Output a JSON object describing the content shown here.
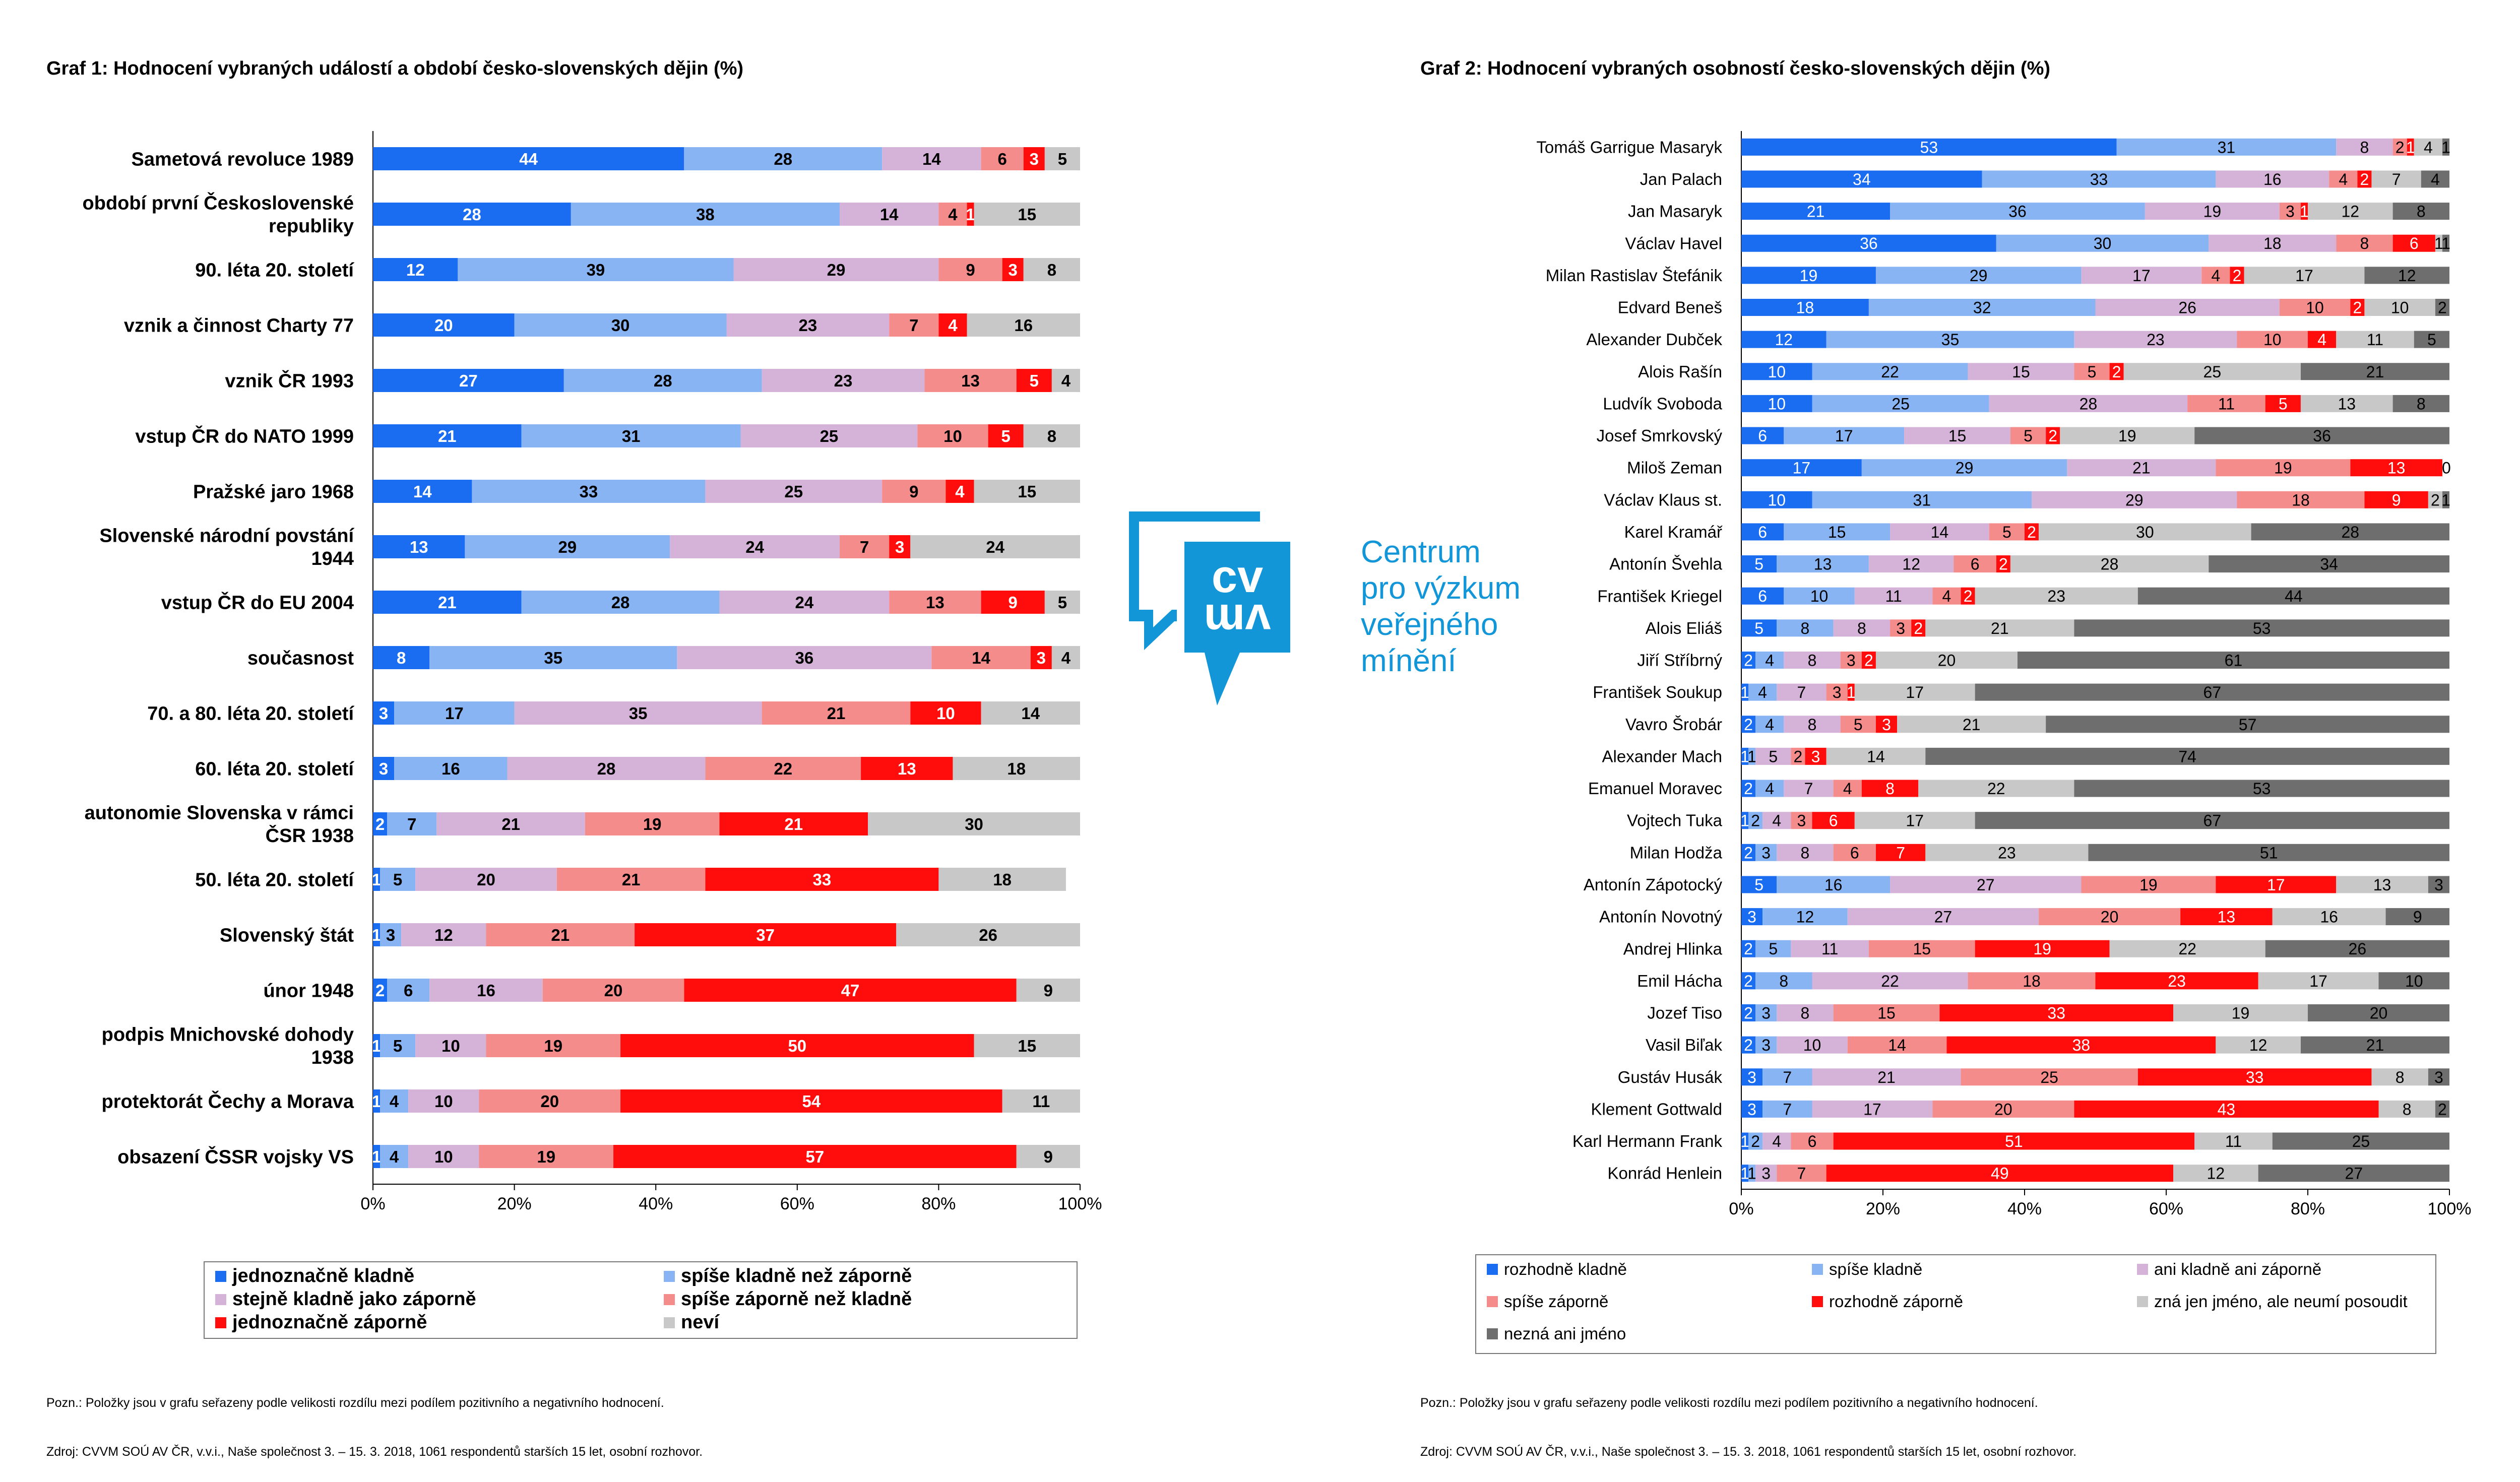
{
  "chart_data": [
    {
      "type": "bar",
      "stacked": true,
      "orientation": "horizontal",
      "title": "Graf 1: Hodnocení vybraných událostí a období česko-slovenských dějin (%)",
      "xlim": [
        0,
        100
      ],
      "xticks": [
        "0%",
        "20%",
        "40%",
        "60%",
        "80%",
        "100%"
      ],
      "grid": false,
      "legend_position": "bottom",
      "categories": [
        "Sametová revoluce 1989",
        "období první Československé republiky",
        "90. léta 20. století",
        "vznik a činnost Charty 77",
        "vznik ČR 1993",
        "vstup ČR do NATO 1999",
        "Pražské jaro 1968",
        "Slovenské národní povstání 1944",
        "vstup ČR do EU 2004",
        "současnost",
        "70. a 80. léta 20. století",
        "60. léta 20. století",
        "autonomie Slovenska v rámci ČSR 1938",
        "50. léta 20. století",
        "Slovenský štát",
        "únor 1948",
        "podpis Mnichovské dohody 1938",
        "protektorát Čechy a Morava",
        "obsazení ČSSR vojsky VS"
      ],
      "series": [
        {
          "name": "jednoznačně kladně",
          "color": "#1a6cf0",
          "values": [
            44,
            28,
            12,
            20,
            27,
            21,
            14,
            13,
            21,
            8,
            3,
            3,
            2,
            1,
            1,
            2,
            1,
            1,
            1
          ]
        },
        {
          "name": "spíše kladně než záporně",
          "color": "#89b4f4",
          "values": [
            28,
            38,
            39,
            30,
            28,
            31,
            33,
            29,
            28,
            35,
            17,
            16,
            7,
            5,
            3,
            6,
            5,
            4,
            4
          ]
        },
        {
          "name": "stejně kladně jako záporně",
          "color": "#d5b2d8",
          "values": [
            14,
            14,
            29,
            23,
            23,
            25,
            25,
            24,
            24,
            36,
            35,
            28,
            21,
            20,
            12,
            16,
            10,
            10,
            10
          ]
        },
        {
          "name": "spíše záporně než kladně",
          "color": "#f58c8c",
          "values": [
            6,
            4,
            9,
            7,
            13,
            10,
            9,
            7,
            13,
            14,
            21,
            22,
            19,
            21,
            21,
            20,
            19,
            20,
            19
          ]
        },
        {
          "name": "jednoznačně záporně",
          "color": "#ff0d0d",
          "values": [
            3,
            1,
            3,
            4,
            5,
            5,
            4,
            3,
            9,
            3,
            10,
            13,
            21,
            33,
            37,
            47,
            50,
            54,
            57
          ]
        },
        {
          "name": "neví",
          "color": "#c8c8c8",
          "values": [
            5,
            15,
            8,
            16,
            4,
            8,
            15,
            24,
            5,
            4,
            14,
            18,
            30,
            18,
            26,
            9,
            15,
            11,
            9
          ]
        }
      ]
    },
    {
      "type": "bar",
      "stacked": true,
      "orientation": "horizontal",
      "title": "Graf 2: Hodnocení vybraných osobností česko-slovenských dějin (%)",
      "xlim": [
        0,
        100
      ],
      "xticks": [
        "0%",
        "20%",
        "40%",
        "60%",
        "80%",
        "100%"
      ],
      "grid": false,
      "legend_position": "bottom",
      "categories": [
        "Tomáš Garrigue Masaryk",
        "Jan Palach",
        "Jan Masaryk",
        "Václav Havel",
        "Milan Rastislav Štefánik",
        "Edvard Beneš",
        "Alexander Dubček",
        "Alois Rašín",
        "Ludvík Svoboda",
        "Josef Smrkovský",
        "Miloš Zeman",
        "Václav Klaus st.",
        "Karel Kramář",
        "Antonín Švehla",
        "František Kriegel",
        "Alois Eliáš",
        "Jiří Stříbrný",
        "František Soukup",
        "Vavro Šrobár",
        "Alexander Mach",
        "Emanuel Moravec",
        "Vojtech Tuka",
        "Milan Hodža",
        "Antonín Zápotocký",
        "Antonín Novotný",
        "Andrej Hlinka",
        "Emil Hácha",
        "Jozef Tiso",
        "Vasil Biľak",
        "Gustáv Husák",
        "Klement Gottwald",
        "Karl Hermann Frank",
        "Konrád Henlein"
      ],
      "series": [
        {
          "name": "rozhodně kladně",
          "color": "#1a6cf0",
          "values": [
            53,
            34,
            21,
            36,
            19,
            18,
            12,
            10,
            10,
            6,
            17,
            10,
            6,
            5,
            6,
            5,
            2,
            1,
            2,
            1,
            2,
            1,
            2,
            5,
            3,
            2,
            2,
            2,
            2,
            3,
            3,
            1,
            1
          ]
        },
        {
          "name": "spíše kladně",
          "color": "#89b4f4",
          "values": [
            31,
            33,
            36,
            30,
            29,
            32,
            35,
            22,
            25,
            17,
            29,
            31,
            15,
            13,
            10,
            8,
            4,
            4,
            4,
            1,
            4,
            2,
            3,
            16,
            12,
            5,
            8,
            3,
            3,
            7,
            7,
            2,
            1
          ]
        },
        {
          "name": "ani kladně ani záporně",
          "color": "#d5b2d8",
          "values": [
            8,
            16,
            19,
            18,
            17,
            26,
            23,
            15,
            28,
            15,
            21,
            29,
            14,
            12,
            11,
            8,
            8,
            7,
            8,
            5,
            7,
            4,
            8,
            27,
            27,
            11,
            22,
            8,
            10,
            21,
            17,
            4,
            3
          ]
        },
        {
          "name": "spíše záporně",
          "color": "#f58c8c",
          "values": [
            2,
            4,
            3,
            8,
            4,
            10,
            10,
            5,
            11,
            5,
            19,
            18,
            5,
            6,
            4,
            3,
            3,
            3,
            5,
            2,
            4,
            3,
            6,
            19,
            20,
            15,
            18,
            15,
            14,
            25,
            20,
            6,
            7
          ]
        },
        {
          "name": "rozhodně záporně",
          "color": "#ff0d0d",
          "values": [
            1,
            2,
            1,
            6,
            2,
            2,
            4,
            2,
            5,
            2,
            13,
            9,
            2,
            2,
            2,
            2,
            2,
            1,
            3,
            3,
            8,
            6,
            7,
            17,
            13,
            19,
            23,
            33,
            38,
            33,
            43,
            51,
            49
          ]
        },
        {
          "name": "zná jen jméno, ale neumí posoudit",
          "color": "#c8c8c8",
          "values": [
            4,
            7,
            12,
            1,
            17,
            10,
            11,
            25,
            13,
            19,
            0,
            2,
            30,
            28,
            23,
            21,
            20,
            17,
            21,
            14,
            22,
            17,
            23,
            13,
            16,
            22,
            17,
            19,
            12,
            8,
            8,
            11,
            12
          ]
        },
        {
          "name": "nezná ani jméno",
          "color": "#6e6e6e",
          "values": [
            1,
            4,
            8,
            1,
            12,
            2,
            5,
            21,
            8,
            36,
            0,
            1,
            28,
            34,
            44,
            53,
            61,
            67,
            57,
            74,
            53,
            67,
            51,
            3,
            9,
            26,
            10,
            20,
            21,
            3,
            2,
            25,
            27
          ]
        }
      ]
    }
  ],
  "notes": {
    "poznamka": "Pozn.: Položky jsou v grafu seřazeny podle velikosti rozdílu mezi podílem pozitivního a negativního hodnocení.",
    "zdroj": "Zdroj: CVVM SOÚ AV ČR, v.v.i., Naše společnost 3. – 15. 3. 2018, 1061 respondentů starších 15 let, osobní rozhovor."
  },
  "logo": {
    "mark": "cvvm",
    "line1": "Centrum",
    "line2": "pro výzkum",
    "line3": "veřejného",
    "line4": "mínění",
    "color": "#1296d8"
  }
}
